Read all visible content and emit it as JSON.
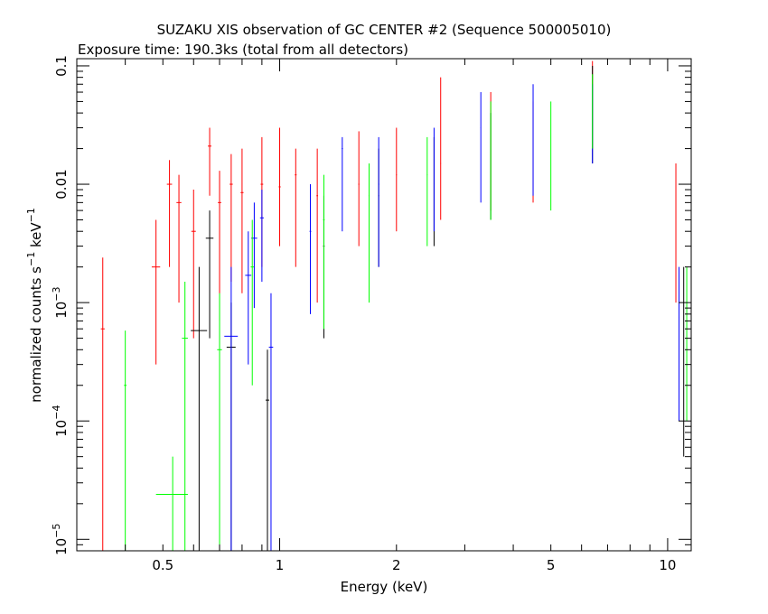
{
  "chart_data": {
    "type": "scatter",
    "title": "SUZAKU XIS observation of GC CENTER #2 (Sequence 500005010)",
    "subtitle": "Exposure time: 190.3ks (total from all detectors)",
    "xlabel": "Energy (keV)",
    "ylabel_main": "normalized counts s",
    "ylabel_exp1": "−1",
    "ylabel_mid": " keV",
    "ylabel_exp2": "−1",
    "x_scale": "log",
    "y_scale": "log",
    "xlim": [
      0.3,
      11.5
    ],
    "ylim": [
      8e-06,
      0.115
    ],
    "grid": false,
    "legend": "none",
    "x_ticks": [
      {
        "value": 0.5,
        "label": "0.5"
      },
      {
        "value": 1,
        "label": "1"
      },
      {
        "value": 2,
        "label": "2"
      },
      {
        "value": 5,
        "label": "5"
      },
      {
        "value": 10,
        "label": "10"
      }
    ],
    "y_ticks": [
      {
        "value": 0.1,
        "label": "0.1",
        "base": "",
        "exp": ""
      },
      {
        "value": 0.01,
        "label": "0.01",
        "base": "",
        "exp": ""
      },
      {
        "value": 0.001,
        "label": "",
        "base": "10",
        "exp": "−3"
      },
      {
        "value": 0.0001,
        "label": "",
        "base": "10",
        "exp": "−4"
      },
      {
        "value": 1e-05,
        "label": "",
        "base": "10",
        "exp": "−5"
      }
    ],
    "series": [
      {
        "color": "#ff0000",
        "points": [
          {
            "x": 0.35,
            "y": 0.0006,
            "ylo": 8e-06,
            "yhi": 0.0024,
            "xerr": 0.004
          },
          {
            "x": 0.48,
            "y": 0.002,
            "ylo": 0.0003,
            "yhi": 0.005,
            "xerr": 0.012
          },
          {
            "x": 0.52,
            "y": 0.01,
            "ylo": 0.002,
            "yhi": 0.016,
            "xerr": 0.008
          },
          {
            "x": 0.55,
            "y": 0.007,
            "ylo": 0.001,
            "yhi": 0.012,
            "xerr": 0.008
          },
          {
            "x": 0.6,
            "y": 0.004,
            "ylo": 0.0005,
            "yhi": 0.009,
            "xerr": 0.008
          },
          {
            "x": 0.66,
            "y": 0.021,
            "ylo": 0.008,
            "yhi": 0.03,
            "xerr": 0.007
          },
          {
            "x": 0.7,
            "y": 0.007,
            "ylo": 0.0007,
            "yhi": 0.013,
            "xerr": 0.007
          },
          {
            "x": 0.75,
            "y": 0.01,
            "ylo": 0.0015,
            "yhi": 0.018,
            "xerr": 0.007
          },
          {
            "x": 0.8,
            "y": 0.0085,
            "ylo": 0.0012,
            "yhi": 0.02,
            "xerr": 0.007
          },
          {
            "x": 0.9,
            "y": 0.01,
            "ylo": 0.002,
            "yhi": 0.025,
            "xerr": 0.007
          },
          {
            "x": 1.0,
            "y": 0.0095,
            "ylo": 0.003,
            "yhi": 0.03,
            "xerr": 0.006
          },
          {
            "x": 1.1,
            "y": 0.012,
            "ylo": 0.002,
            "yhi": 0.02,
            "xerr": 0.006
          },
          {
            "x": 1.25,
            "y": 0.008,
            "ylo": 0.001,
            "yhi": 0.02,
            "xerr": 0.006
          },
          {
            "x": 1.6,
            "y": 0.01,
            "ylo": 0.003,
            "yhi": 0.028,
            "xerr": 0.005
          },
          {
            "x": 2.0,
            "y": 0.012,
            "ylo": 0.004,
            "yhi": 0.03,
            "xerr": 0.005
          },
          {
            "x": 2.6,
            "y": 0.015,
            "ylo": 0.005,
            "yhi": 0.08,
            "xerr": 0.005
          },
          {
            "x": 3.5,
            "y": 0.02,
            "ylo": 0.006,
            "yhi": 0.06,
            "xerr": 0.005
          },
          {
            "x": 4.5,
            "y": 0.025,
            "ylo": 0.007,
            "yhi": 0.05,
            "xerr": 0.005
          },
          {
            "x": 6.4,
            "y": 0.07,
            "ylo": 0.02,
            "yhi": 0.11,
            "xerr": 0.005
          },
          {
            "x": 10.5,
            "y": 0.008,
            "ylo": 0.001,
            "yhi": 0.015,
            "xerr": 0.005
          }
        ]
      },
      {
        "color": "#000000",
        "points": [
          {
            "x": 0.62,
            "y": 0.00058,
            "ylo": 8e-06,
            "yhi": 0.002,
            "xerr": 0.03
          },
          {
            "x": 0.66,
            "y": 0.0035,
            "ylo": 0.0005,
            "yhi": 0.006,
            "xerr": 0.015
          },
          {
            "x": 0.75,
            "y": 0.00042,
            "ylo": 8e-06,
            "yhi": 0.001,
            "xerr": 0.02
          },
          {
            "x": 0.93,
            "y": 0.00015,
            "ylo": 8e-06,
            "yhi": 0.0004,
            "xerr": 0.01
          },
          {
            "x": 1.3,
            "y": 0.003,
            "ylo": 0.0005,
            "yhi": 0.008,
            "xerr": 0.006
          },
          {
            "x": 1.8,
            "y": 0.008,
            "ylo": 0.002,
            "yhi": 0.02,
            "xerr": 0.005
          },
          {
            "x": 2.5,
            "y": 0.01,
            "ylo": 0.003,
            "yhi": 0.025,
            "xerr": 0.005
          },
          {
            "x": 3.5,
            "y": 0.02,
            "ylo": 0.005,
            "yhi": 0.04,
            "xerr": 0.005
          },
          {
            "x": 6.4,
            "y": 0.06,
            "ylo": 0.015,
            "yhi": 0.1,
            "xerr": 0.005
          },
          {
            "x": 11.0,
            "y": 0.0007,
            "ylo": 5e-05,
            "yhi": 0.002,
            "xerr": 0.005
          }
        ]
      },
      {
        "color": "#0000ff",
        "points": [
          {
            "x": 0.75,
            "y": 0.00052,
            "ylo": 8e-06,
            "yhi": 0.002,
            "xerr": 0.03
          },
          {
            "x": 0.83,
            "y": 0.0017,
            "ylo": 0.0003,
            "yhi": 0.004,
            "xerr": 0.015
          },
          {
            "x": 0.86,
            "y": 0.0035,
            "ylo": 0.0009,
            "yhi": 0.007,
            "xerr": 0.015
          },
          {
            "x": 0.9,
            "y": 0.0052,
            "ylo": 0.0015,
            "yhi": 0.009,
            "xerr": 0.01
          },
          {
            "x": 0.95,
            "y": 0.00042,
            "ylo": 8e-06,
            "yhi": 0.0012,
            "xerr": 0.012
          },
          {
            "x": 1.2,
            "y": 0.004,
            "ylo": 0.0008,
            "yhi": 0.01,
            "xerr": 0.006
          },
          {
            "x": 1.45,
            "y": 0.02,
            "ylo": 0.004,
            "yhi": 0.025,
            "xerr": 0.005
          },
          {
            "x": 1.8,
            "y": 0.01,
            "ylo": 0.002,
            "yhi": 0.025,
            "xerr": 0.005
          },
          {
            "x": 2.5,
            "y": 0.015,
            "ylo": 0.004,
            "yhi": 0.03,
            "xerr": 0.005
          },
          {
            "x": 3.3,
            "y": 0.03,
            "ylo": 0.007,
            "yhi": 0.06,
            "xerr": 0.005
          },
          {
            "x": 4.5,
            "y": 0.03,
            "ylo": 0.008,
            "yhi": 0.07,
            "xerr": 0.005
          },
          {
            "x": 6.4,
            "y": 0.05,
            "ylo": 0.015,
            "yhi": 0.07,
            "xerr": 0.005
          },
          {
            "x": 10.7,
            "y": 0.00075,
            "ylo": 0.0001,
            "yhi": 0.002,
            "xerr": 0.005
          }
        ]
      },
      {
        "color": "#00ff00",
        "points": [
          {
            "x": 0.4,
            "y": 0.0002,
            "ylo": 8e-06,
            "yhi": 0.00058,
            "xerr": 0.003
          },
          {
            "x": 0.53,
            "y": 2.4e-05,
            "ylo": 8e-06,
            "yhi": 5e-05,
            "xerr": 0.05
          },
          {
            "x": 0.57,
            "y": 0.0005,
            "ylo": 8e-06,
            "yhi": 0.0015,
            "xerr": 0.01
          },
          {
            "x": 0.7,
            "y": 0.0004,
            "ylo": 8e-06,
            "yhi": 0.0012,
            "xerr": 0.01
          },
          {
            "x": 0.85,
            "y": 0.002,
            "ylo": 0.0002,
            "yhi": 0.005,
            "xerr": 0.008
          },
          {
            "x": 1.3,
            "y": 0.005,
            "ylo": 0.0006,
            "yhi": 0.012,
            "xerr": 0.006
          },
          {
            "x": 1.7,
            "y": 0.008,
            "ylo": 0.001,
            "yhi": 0.015,
            "xerr": 0.005
          },
          {
            "x": 2.4,
            "y": 0.012,
            "ylo": 0.003,
            "yhi": 0.025,
            "xerr": 0.005
          },
          {
            "x": 3.5,
            "y": 0.02,
            "ylo": 0.005,
            "yhi": 0.05,
            "xerr": 0.005
          },
          {
            "x": 5.0,
            "y": 0.025,
            "ylo": 0.006,
            "yhi": 0.05,
            "xerr": 0.005
          },
          {
            "x": 6.4,
            "y": 0.05,
            "ylo": 0.02,
            "yhi": 0.085,
            "xerr": 0.005
          },
          {
            "x": 11.2,
            "y": 0.0007,
            "ylo": 0.0001,
            "yhi": 0.002,
            "xerr": 0.005
          }
        ]
      }
    ]
  }
}
